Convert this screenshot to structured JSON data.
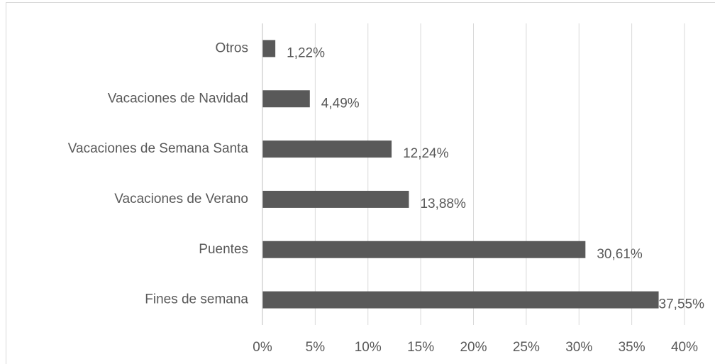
{
  "chart_data": {
    "type": "barh",
    "categories": [
      "Otros",
      "Vacaciones de Navidad",
      "Vacaciones de Semana Santa",
      "Vacaciones de Verano",
      "Puentes",
      "Fines de semana"
    ],
    "values": [
      1.22,
      4.49,
      12.24,
      13.88,
      30.61,
      37.55
    ],
    "value_labels": [
      "1,22%",
      "4,49%",
      "12,24%",
      "13,88%",
      "30,61%",
      "37,55%"
    ],
    "color": "#595959",
    "xlim": [
      0,
      40
    ],
    "xticks": [
      {
        "value": 0,
        "label": "0%"
      },
      {
        "value": 5,
        "label": "5%"
      },
      {
        "value": 10,
        "label": "10%"
      },
      {
        "value": 15,
        "label": "15%"
      },
      {
        "value": 20,
        "label": "20%"
      },
      {
        "value": 25,
        "label": "25%"
      },
      {
        "value": 30,
        "label": "30%"
      },
      {
        "value": 35,
        "label": "35%"
      },
      {
        "value": 40,
        "label": "40%"
      }
    ],
    "grid": true
  }
}
